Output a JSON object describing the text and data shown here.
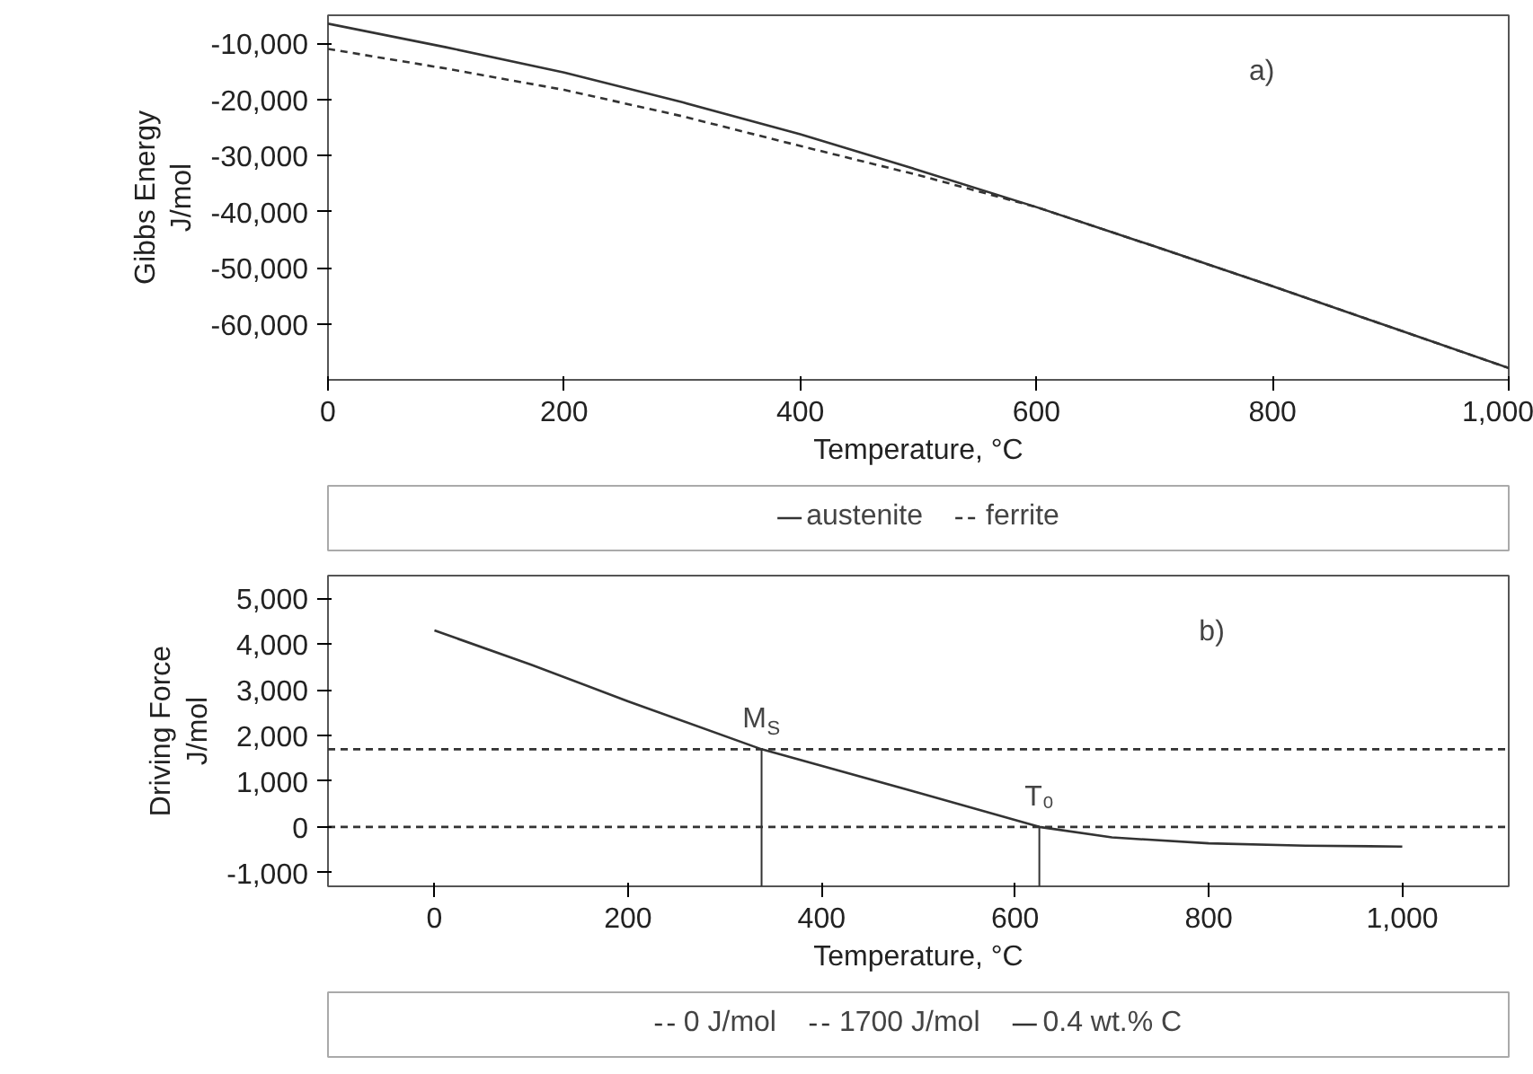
{
  "chart_data": [
    {
      "type": "line",
      "xlabel": "Temperature, °C",
      "ylabel": "Gibbs Energy\nJ/mol",
      "x": [
        0,
        100,
        200,
        300,
        400,
        500,
        600,
        700,
        800,
        900,
        1000
      ],
      "xlim": [
        0,
        1000
      ],
      "xticks": [
        0,
        200,
        400,
        600,
        800,
        {
          "value": 1000,
          "label": "1,000"
        }
      ],
      "ylim": [
        -70000,
        -5000
      ],
      "yticks": [
        {
          "value": -10000,
          "label": "-10,000"
        },
        {
          "value": -20000,
          "label": "-20,000"
        },
        {
          "value": -30000,
          "label": "-30,000"
        },
        {
          "value": -40000,
          "label": "-40,000"
        },
        {
          "value": -50000,
          "label": "-50,000"
        },
        {
          "value": -60000,
          "label": "-60,000"
        }
      ],
      "grid": false,
      "legend": "bottom",
      "series": [
        {
          "name": "austenite",
          "color": "#333333",
          "line_style": "solid",
          "values": [
            -6500,
            -10700,
            -15200,
            -20500,
            -26200,
            -32600,
            -39200,
            -46200,
            -53300,
            -60600,
            -67900
          ]
        },
        {
          "name": "ferrite",
          "color": "#333333",
          "line_style": "dashed",
          "values": [
            -11000,
            -14500,
            -18300,
            -23000,
            -28300,
            -33500,
            -39200,
            -46200,
            -53300,
            -60600,
            -67900
          ]
        }
      ],
      "annotations": [
        "a)"
      ]
    },
    {
      "type": "line",
      "xlabel": "Temperature, °C",
      "ylabel": "Driving Force\nJ/mol",
      "x": [
        0,
        100,
        200,
        338,
        500,
        625,
        700,
        800,
        900,
        1000
      ],
      "xlim": [
        -110,
        1110
      ],
      "xticks": [
        0,
        200,
        400,
        600,
        800,
        {
          "value": 1000,
          "label": "1,000"
        }
      ],
      "ylim": [
        -1300,
        5500
      ],
      "yticks": [
        {
          "value": -1000,
          "label": "-1,000"
        },
        0,
        {
          "value": 1000,
          "label": "1,000"
        },
        {
          "value": 2000,
          "label": "2,000"
        },
        {
          "value": 3000,
          "label": "3,000"
        },
        {
          "value": 4000,
          "label": "4,000"
        },
        {
          "value": 5000,
          "label": "5,000"
        }
      ],
      "grid": false,
      "legend": "bottom",
      "series": [
        {
          "name": "0.4 wt.% C",
          "color": "#333333",
          "line_style": "solid",
          "values": [
            4300,
            3550,
            2750,
            1700,
            750,
            0,
            -230,
            -360,
            -410,
            -430
          ]
        }
      ],
      "ref_lines": [
        {
          "axis": "y",
          "value": 0,
          "label": "0 J/mol",
          "color": "#333333",
          "line_style": "dashed"
        },
        {
          "axis": "y",
          "value": 1700,
          "label": "1700 J/mol",
          "color": "#333333",
          "line_style": "dashed"
        }
      ],
      "annotations": [
        "b)",
        {
          "text": "M$_{S}$",
          "x": 338,
          "y": 1700
        },
        {
          "text": "T₀",
          "x": 625,
          "y": 0
        }
      ]
    }
  ]
}
